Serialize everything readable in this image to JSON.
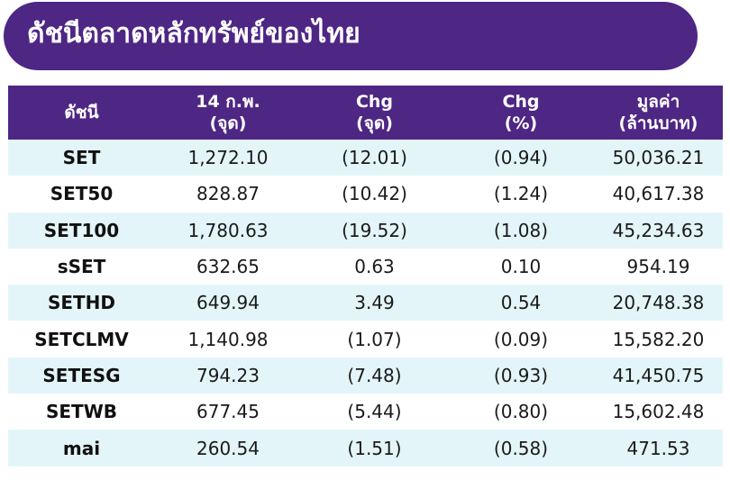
{
  "title": "ดัชนีตลาดหลักทรัพย์ของไทย",
  "colors": {
    "header_bg": "#4e2684",
    "row_alt_bg": "#e3f5f9",
    "text": "#1a1a1a"
  },
  "table": {
    "headers": [
      "ดัชนี",
      "14 ก.พ.\n(จุด)",
      "Chg\n(จุด)",
      "Chg\n(%)",
      "มูลค่า\n(ล้านบาท)"
    ],
    "rows": [
      [
        "SET",
        "1,272.10",
        "(12.01)",
        "(0.94)",
        "50,036.21"
      ],
      [
        "SET50",
        "828.87",
        "(10.42)",
        "(1.24)",
        "40,617.38"
      ],
      [
        "SET100",
        "1,780.63",
        "(19.52)",
        "(1.08)",
        "45,234.63"
      ],
      [
        "sSET",
        "632.65",
        "0.63",
        "0.10",
        "954.19"
      ],
      [
        "SETHD",
        "649.94",
        "3.49",
        "0.54",
        "20,748.38"
      ],
      [
        "SETCLMV",
        "1,140.98",
        "(1.07)",
        "(0.09)",
        "15,582.20"
      ],
      [
        "SETESG",
        "794.23",
        "(7.48)",
        "(0.93)",
        "41,450.75"
      ],
      [
        "SETWB",
        "677.45",
        "(5.44)",
        "(0.80)",
        "15,602.48"
      ],
      [
        "mai",
        "260.54",
        "(1.51)",
        "(0.58)",
        "471.53"
      ]
    ]
  }
}
